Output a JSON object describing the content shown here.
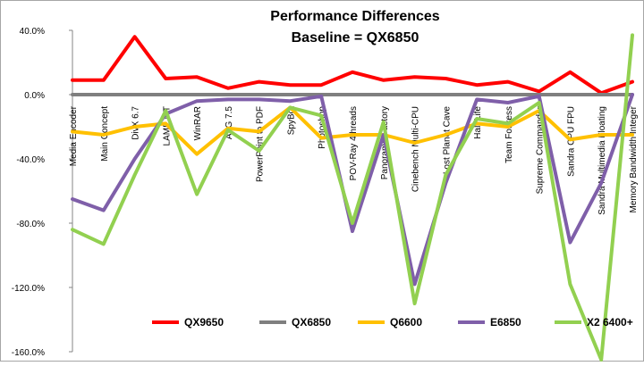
{
  "chart_data": {
    "type": "line",
    "title": "Performance Differences",
    "subtitle": "Baseline = QX6850",
    "ylim": [
      -160,
      40
    ],
    "yticks": [
      40,
      0,
      -40,
      -80,
      -120,
      -160
    ],
    "ytick_labels": [
      "40.0%",
      "0.0%",
      "-40.0%",
      "-80.0%",
      "-120.0%",
      "-160.0%"
    ],
    "grid": false,
    "legend_position": "bottom",
    "categories": [
      "Media Encoder",
      "Main Concept",
      "DivX 6.7",
      "LAME MT",
      "WinRAR",
      "AVG 7.5",
      "PowerPoint to PDF",
      "SpyBot",
      "Photoshop",
      "POV-Ray 4threads",
      "Panorama Factory",
      "Cinebench Multi-CPU",
      "Lost Planet Cave",
      "Half Life",
      "Team Fortress",
      "Supreme Commander",
      "Sandra CPU FPU",
      "Sandra Multimedia Floating",
      "Memory Bandwidth Integer"
    ],
    "series": [
      {
        "name": "QX9650",
        "color": "#ff0000",
        "values": [
          9,
          9,
          36,
          10,
          11,
          4,
          8,
          6,
          6,
          14,
          9,
          11,
          10,
          6,
          8,
          2,
          14,
          1,
          8
        ]
      },
      {
        "name": "QX6850",
        "color": "#7f7f7f",
        "values": [
          0,
          0,
          0,
          0,
          0,
          0,
          0,
          0,
          0,
          0,
          0,
          0,
          0,
          0,
          0,
          0,
          0,
          0,
          0
        ]
      },
      {
        "name": "Q6600",
        "color": "#ffc000",
        "values": [
          -23,
          -25,
          -20,
          -18,
          -37,
          -21,
          -23,
          -8,
          -27,
          -25,
          -25,
          -30,
          -25,
          -18,
          -20,
          -10,
          -28,
          -25,
          -25
        ]
      },
      {
        "name": "E6850",
        "color": "#7f5fa9",
        "values": [
          -65,
          -72,
          -40,
          -12,
          -4,
          -3,
          -3,
          -4,
          -1,
          -85,
          -25,
          -118,
          -55,
          -3,
          -5,
          -1,
          -92,
          -55,
          0
        ]
      },
      {
        "name": "X2 6400+",
        "color": "#92d050",
        "values": [
          -84,
          -93,
          -50,
          -10,
          -62,
          -22,
          -35,
          -8,
          -13,
          -80,
          -17,
          -130,
          -50,
          -15,
          -18,
          -5,
          -118,
          -165,
          37
        ]
      }
    ]
  }
}
